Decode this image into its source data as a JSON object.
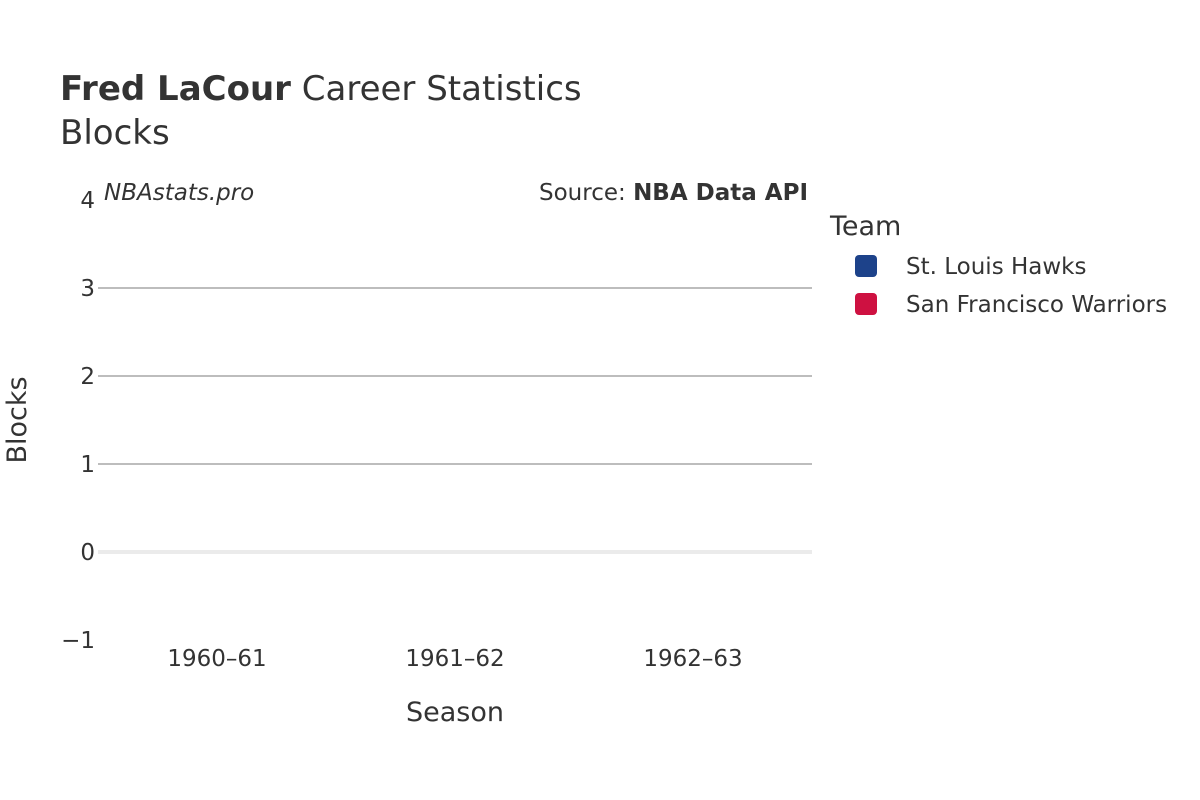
{
  "title": {
    "bold": "Fred LaCour",
    "rest": " Career Statistics"
  },
  "subtitle": "Blocks",
  "watermark": "NBAstats.pro",
  "source": {
    "prefix": "Source: ",
    "bold": "NBA Data API"
  },
  "chart_data": {
    "type": "bar",
    "xlabel": "Season",
    "ylabel": "Blocks",
    "categories": [
      "1960–61",
      "1961–62",
      "1962–63"
    ],
    "ylim": [
      -1,
      4
    ],
    "yticks": [
      -1,
      0,
      1,
      2,
      3,
      4
    ],
    "grid": true,
    "series": [
      {
        "name": "St. Louis Hawks",
        "color": "#1d428a",
        "values": [
          null,
          null,
          null
        ]
      },
      {
        "name": "San Francisco Warriors",
        "color": "#ce1141",
        "values": [
          null,
          null,
          null
        ]
      }
    ],
    "legend": {
      "title": "Team",
      "position": "right"
    }
  }
}
